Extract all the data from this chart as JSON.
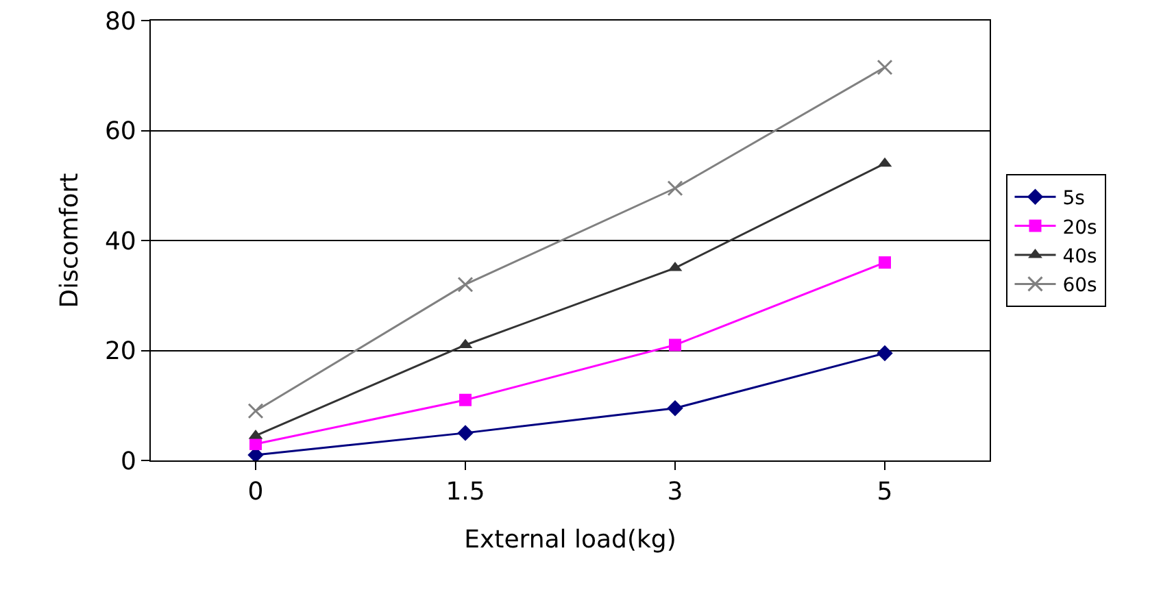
{
  "chart_data": {
    "type": "line",
    "xlabel": "External load(kg)",
    "ylabel": "Discomfort",
    "categories": [
      "0",
      "1.5",
      "3",
      "5"
    ],
    "series": [
      {
        "name": "5s",
        "color": "#000080",
        "marker": "diamond",
        "values": [
          1,
          5,
          9.5,
          19.5
        ]
      },
      {
        "name": "20s",
        "color": "#ff00ff",
        "marker": "square",
        "values": [
          3,
          11,
          21,
          36
        ]
      },
      {
        "name": "40s",
        "color": "#333333",
        "marker": "triangle",
        "values": [
          4.5,
          21,
          35,
          54
        ]
      },
      {
        "name": "60s",
        "color": "#808080",
        "marker": "cross",
        "values": [
          9,
          32,
          49.5,
          71.5
        ]
      }
    ],
    "ylim": [
      0,
      80
    ],
    "yticks": [
      0,
      20,
      40,
      60,
      80
    ],
    "grid": "y",
    "legend": "right",
    "line_style": "solid"
  }
}
